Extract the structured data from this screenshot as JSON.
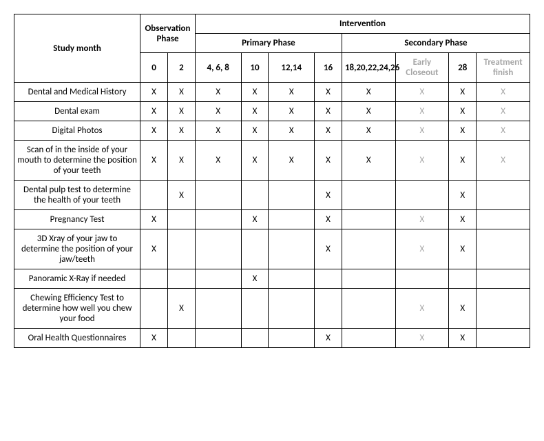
{
  "headers": {
    "obs_phase": "Observation Phase",
    "intervention": "Intervention",
    "primary": "Primary Phase",
    "secondary": "Secondary Phase",
    "study_month": "Study month",
    "m0": "0",
    "m2": "2",
    "m468": "4, 6, 8",
    "m10": "10",
    "m1214": "12,14",
    "m16": "16",
    "m1826": "18,20,22,24,26",
    "early": "Early Closeout",
    "m28": "28",
    "treat_fin": "Treatment finish"
  },
  "rows": [
    {
      "label": "Dental and Medical History",
      "cells": [
        "X",
        "X",
        "X",
        "X",
        "X",
        "X",
        "X",
        "Xg",
        "X",
        "Xg"
      ]
    },
    {
      "label": "Dental exam",
      "cells": [
        "X",
        "X",
        "X",
        "X",
        "X",
        "X",
        "X",
        "Xg",
        "X",
        "Xg"
      ]
    },
    {
      "label": "Digital Photos",
      "cells": [
        "X",
        "X",
        "X",
        "X",
        "X",
        "X",
        "X",
        "Xg",
        "X",
        "Xg"
      ]
    },
    {
      "label": "Scan of in the inside of your mouth to determine the position of your teeth",
      "cells": [
        "X",
        "X",
        "X",
        "X",
        "X",
        "X",
        "X",
        "Xg",
        "X",
        "Xg"
      ]
    },
    {
      "label": "Dental pulp test to determine the health of your teeth",
      "cells": [
        "",
        "X",
        "",
        "",
        "",
        "X",
        "",
        "",
        "X",
        ""
      ]
    },
    {
      "label": "Pregnancy Test",
      "cells": [
        "X",
        "",
        "",
        "X",
        "",
        "X",
        "",
        "Xg",
        "X",
        ""
      ]
    },
    {
      "label": "3D Xray of your jaw to determine the position of your jaw/teeth",
      "cells": [
        "X",
        "",
        "",
        "",
        "",
        "X",
        "",
        "Xg",
        "X",
        ""
      ]
    },
    {
      "label": "Panoramic X-Ray if needed",
      "cells": [
        "",
        "",
        "",
        "X",
        "",
        "",
        "",
        "",
        "",
        ""
      ]
    },
    {
      "label": "Chewing Efficiency Test to determine how well you chew your food",
      "cells": [
        "",
        "X",
        "",
        "",
        "",
        "",
        "",
        "Xg",
        "X",
        ""
      ]
    },
    {
      "label": "Oral Health Questionnaires",
      "cells": [
        "X",
        "",
        "",
        "",
        "",
        "X",
        "",
        "Xg",
        "X",
        ""
      ]
    }
  ]
}
